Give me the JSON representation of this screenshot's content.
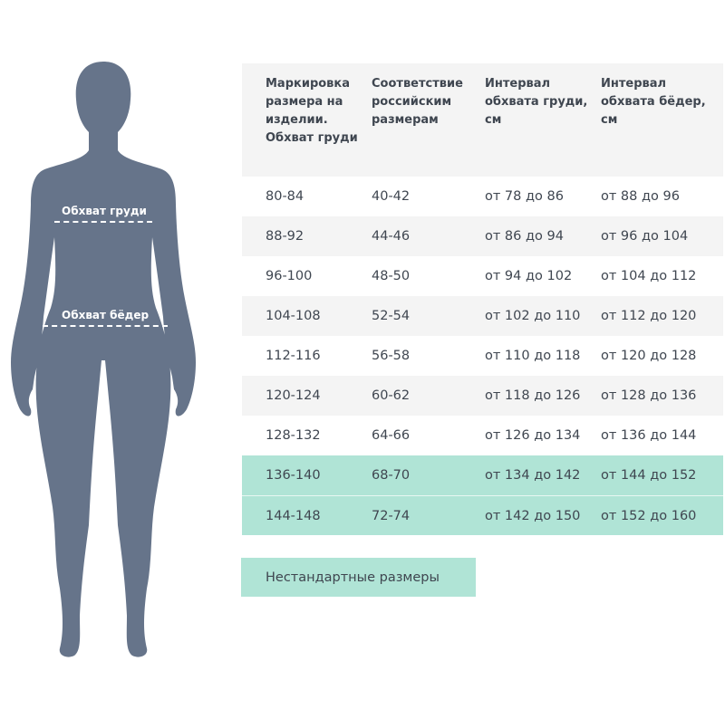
{
  "figure": {
    "chest_label": "Обхват груди",
    "hips_label": "Обхват бёдер",
    "silhouette_color": "#66748a"
  },
  "table": {
    "headers": [
      "Маркировка размера на изделии. Обхват груди",
      "Соответствие российским размерам",
      "Интервал обхвата груди, см",
      "Интервал обхвата бёдер, см"
    ],
    "rows": [
      [
        "80-84",
        "40-42",
        "от 78 до 86",
        "от 88 до 96"
      ],
      [
        "88-92",
        "44-46",
        "от 86 до 94",
        "от 96 до 104"
      ],
      [
        "96-100",
        "48-50",
        "от 94 до 102",
        "от 104 до 112"
      ],
      [
        "104-108",
        "52-54",
        "от 102 до 110",
        "от 112 до 120"
      ],
      [
        "112-116",
        "56-58",
        "от 110 до 118",
        "от 120 до 128"
      ],
      [
        "120-124",
        "60-62",
        "от 118 до 126",
        "от 128 до 136"
      ],
      [
        "128-132",
        "64-66",
        "от 126 до 134",
        "от 136 до 144"
      ],
      [
        "136-140",
        "68-70",
        "от 134 до 142",
        "от 144 до 152"
      ],
      [
        "144-148",
        "72-74",
        "от 142 до 150",
        "от 152 до 160"
      ]
    ],
    "highlight_color": "#b0e4d6",
    "stripe_color": "#f4f4f4"
  },
  "legend": {
    "label": "Нестандартные размеры"
  }
}
